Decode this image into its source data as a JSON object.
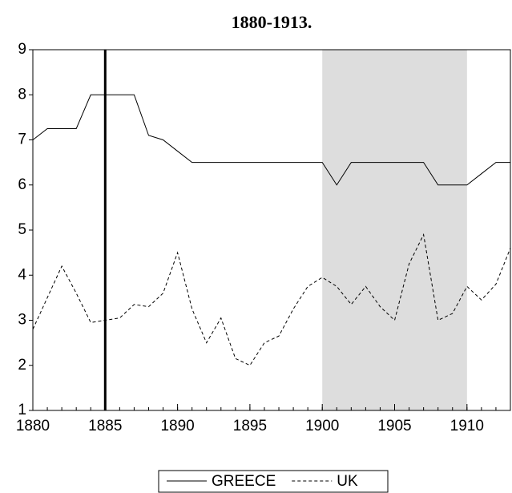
{
  "chart_data": {
    "type": "line",
    "title": "1880-1913.",
    "x": [
      1880,
      1881,
      1882,
      1883,
      1884,
      1885,
      1886,
      1887,
      1888,
      1889,
      1890,
      1891,
      1892,
      1893,
      1894,
      1895,
      1896,
      1897,
      1898,
      1899,
      1900,
      1901,
      1902,
      1903,
      1904,
      1905,
      1906,
      1907,
      1908,
      1909,
      1910,
      1911,
      1912,
      1913
    ],
    "series": [
      {
        "name": "GREECE",
        "color": "#000000",
        "dash": false,
        "values": [
          7.0,
          7.25,
          7.25,
          7.25,
          8.0,
          8.0,
          8.0,
          8.0,
          7.1,
          7.0,
          6.75,
          6.5,
          6.5,
          6.5,
          6.5,
          6.5,
          6.5,
          6.5,
          6.5,
          6.5,
          6.5,
          6.0,
          6.5,
          6.5,
          6.5,
          6.5,
          6.5,
          6.5,
          6.0,
          6.0,
          6.0,
          6.25,
          6.5,
          6.5
        ]
      },
      {
        "name": "UK",
        "color": "#000000",
        "dash": true,
        "values": [
          2.8,
          3.5,
          4.2,
          3.6,
          2.95,
          3.0,
          3.05,
          3.35,
          3.3,
          3.6,
          4.5,
          3.25,
          2.5,
          3.05,
          2.15,
          2.0,
          2.5,
          2.65,
          3.25,
          3.75,
          3.95,
          3.75,
          3.35,
          3.75,
          3.3,
          3.0,
          4.25,
          4.9,
          3.0,
          3.15,
          3.75,
          3.45,
          3.8,
          4.6
        ]
      }
    ],
    "xlim": [
      1880,
      1913
    ],
    "xticks": [
      1880,
      1885,
      1890,
      1895,
      1900,
      1905,
      1910
    ],
    "ylim": [
      1,
      9
    ],
    "yticks": [
      1,
      2,
      3,
      4,
      5,
      6,
      7,
      8,
      9
    ],
    "shade": [
      1900,
      1910
    ],
    "vline": 1885,
    "shade_color": "#dddddd"
  }
}
